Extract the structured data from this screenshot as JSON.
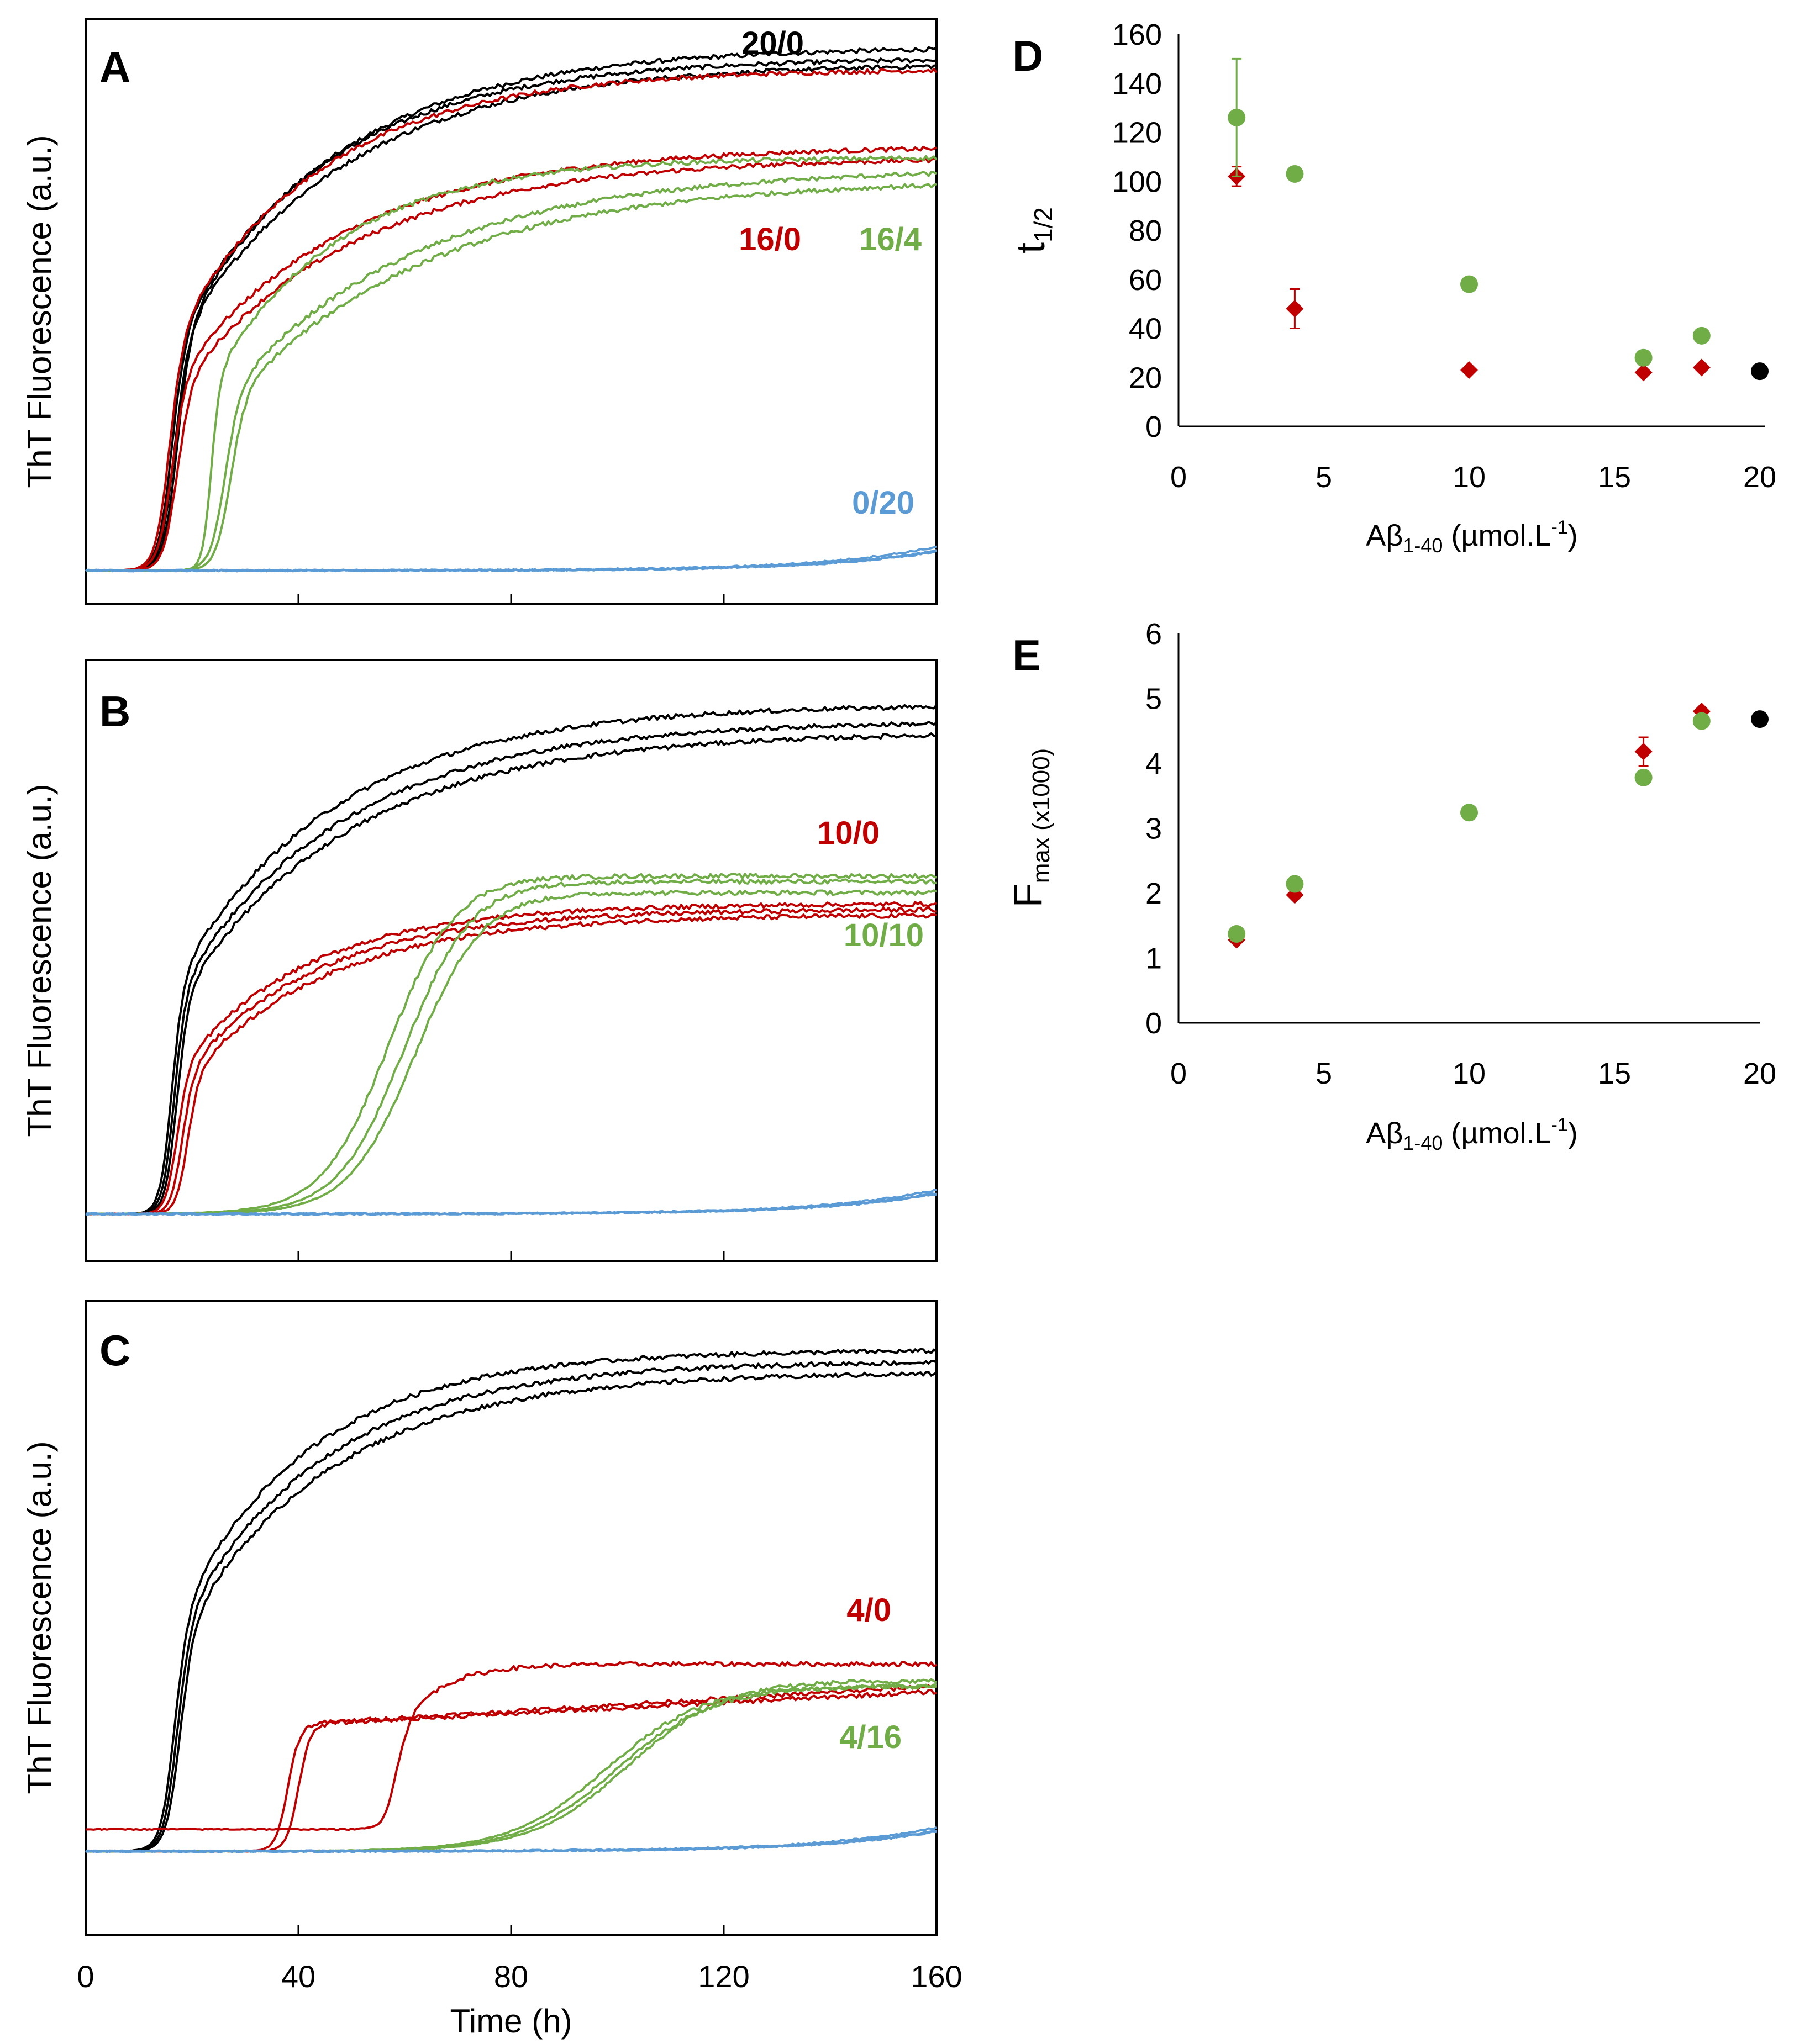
{
  "colors": {
    "black": "#000000",
    "red": "#c00000",
    "green": "#70ad47",
    "blue": "#5b9bd5"
  },
  "chart_data": [
    {
      "type": "line",
      "panel": "A",
      "ylabel": "ThT Fluorescence (a.u.)",
      "xlabel": "",
      "xlim": [
        0,
        160
      ],
      "x_ticks": [
        0,
        40,
        80,
        120,
        160
      ],
      "show_x_tick_labels": false,
      "ylim": [
        0,
        1
      ],
      "y_scale": "arbitrary units (normalized 0–1)",
      "series": [
        {
          "name": "20/0",
          "color": "black",
          "replicates": [
            {
              "t_lag": 17,
              "k": 0.75,
              "plateau": 0.95,
              "b": 0.0,
              "tau": 30
            },
            {
              "t_lag": 16,
              "k": 0.75,
              "plateau": 0.93,
              "b": 0.0,
              "tau": 29
            },
            {
              "t_lag": 16.5,
              "k": 0.75,
              "plateau": 0.92,
              "b": 0.0,
              "tau": 31
            }
          ]
        },
        {
          "name": "16/0",
          "color": "red",
          "replicates": [
            {
              "t_lag": 15.5,
              "k": 0.75,
              "plateau": 0.91,
              "b": 0.0,
              "tau": 28
            },
            {
              "t_lag": 16,
              "k": 0.75,
              "plateau": 0.77,
              "b": 0.0,
              "tau": 32
            },
            {
              "t_lag": 17,
              "k": 0.75,
              "plateau": 0.75,
              "b": 0.0,
              "tau": 33
            }
          ]
        },
        {
          "name": "16/4",
          "color": "green",
          "replicates": [
            {
              "t_lag": 23.5,
              "k": 1.2,
              "plateau": 0.75,
              "b": 0.0,
              "tau": 24
            },
            {
              "t_lag": 26,
              "k": 0.7,
              "plateau": 0.73,
              "b": 0.0,
              "tau": 36
            },
            {
              "t_lag": 27,
              "k": 0.7,
              "plateau": 0.71,
              "b": 0.0,
              "tau": 37
            }
          ]
        },
        {
          "name": "0/20",
          "color": "blue",
          "replicates": [
            {
              "t_lag": 200,
              "k": 0.05,
              "plateau": 0.36,
              "b": 0.0,
              "tau": 1
            },
            {
              "t_lag": 205,
              "k": 0.05,
              "plateau": 0.36,
              "b": 0.0,
              "tau": 1
            },
            {
              "t_lag": 204,
              "k": 0.05,
              "plateau": 0.36,
              "b": 0.0,
              "tau": 1
            }
          ]
        }
      ],
      "annotations": [
        {
          "text": "20/0",
          "color": "black"
        },
        {
          "text": "16/0",
          "color": "red"
        },
        {
          "text": "16/4",
          "color": "green"
        },
        {
          "text": "0/20",
          "color": "blue"
        }
      ]
    },
    {
      "type": "line",
      "panel": "B",
      "ylabel": "ThT Fluorescence (a.u.)",
      "xlabel": "",
      "xlim": [
        0,
        160
      ],
      "x_ticks": [
        0,
        40,
        80,
        120,
        160
      ],
      "show_x_tick_labels": false,
      "ylim": [
        0,
        1
      ],
      "y_scale": "arbitrary units (normalized 0–1)",
      "series": [
        {
          "name": "20/0",
          "color": "black",
          "replicates": [
            {
              "t_lag": 16,
              "k": 0.9,
              "plateau": 0.92,
              "b": 0.0,
              "tau": 30
            },
            {
              "t_lag": 16.5,
              "k": 0.9,
              "plateau": 0.89,
              "b": 0.0,
              "tau": 31
            },
            {
              "t_lag": 17,
              "k": 0.9,
              "plateau": 0.87,
              "b": 0.0,
              "tau": 32
            }
          ]
        },
        {
          "name": "10/0",
          "color": "red",
          "replicates": [
            {
              "t_lag": 17,
              "k": 0.9,
              "plateau": 0.56,
              "b": 0.0,
              "tau": 24
            },
            {
              "t_lag": 18,
              "k": 0.9,
              "plateau": 0.55,
              "b": 0.0,
              "tau": 25
            },
            {
              "t_lag": 19,
              "k": 0.9,
              "plateau": 0.54,
              "b": 0.0,
              "tau": 26
            }
          ]
        },
        {
          "name": "10/10",
          "color": "green",
          "replicates": [
            {
              "t_lag": 57,
              "k": 0.16,
              "plateau": 0.61,
              "b": 0.0,
              "tau": 1
            },
            {
              "t_lag": 60,
              "k": 0.16,
              "plateau": 0.6,
              "b": 0.0,
              "tau": 1
            },
            {
              "t_lag": 62,
              "k": 0.16,
              "plateau": 0.58,
              "b": 0.0,
              "tau": 1
            }
          ]
        },
        {
          "name": "0/20",
          "color": "blue",
          "replicates": [
            {
              "t_lag": 200,
              "k": 0.05,
              "plateau": 0.36,
              "b": 0.0,
              "tau": 1
            },
            {
              "t_lag": 204,
              "k": 0.05,
              "plateau": 0.36,
              "b": 0.0,
              "tau": 1
            },
            {
              "t_lag": 203,
              "k": 0.05,
              "plateau": 0.36,
              "b": 0.0,
              "tau": 1
            }
          ]
        }
      ],
      "annotations": [
        {
          "text": "10/0",
          "color": "red"
        },
        {
          "text": "10/10",
          "color": "green"
        }
      ]
    },
    {
      "type": "line",
      "panel": "C",
      "ylabel": "ThT Fluorescence (a.u.)",
      "xlabel": "Time (h)",
      "xlim": [
        0,
        160
      ],
      "x_ticks": [
        0,
        40,
        80,
        120,
        160
      ],
      "show_x_tick_labels": true,
      "ylim": [
        0,
        1
      ],
      "y_scale": "arbitrary units (normalized 0–1)",
      "series": [
        {
          "name": "20/0",
          "color": "black",
          "replicates": [
            {
              "t_lag": 16.5,
              "k": 0.75,
              "plateau": 0.91,
              "b": 0.0,
              "tau": 25
            },
            {
              "t_lag": 17,
              "k": 0.75,
              "plateau": 0.89,
              "b": 0.0,
              "tau": 27
            },
            {
              "t_lag": 17.5,
              "k": 0.75,
              "plateau": 0.87,
              "b": 0.0,
              "tau": 28
            }
          ]
        },
        {
          "name": "4/0",
          "color": "red",
          "replicates": [
            {
              "t_lag": 40,
              "k": 0.9,
              "plateau": 0.23,
              "b": 0.0,
              "tau": 60,
              "plateau2": 0.29
            },
            {
              "t_lag": 38,
              "k": 0.9,
              "plateau": 0.23,
              "b": 0.0,
              "tau": 60,
              "plateau2": 0.3
            },
            {
              "t_lag": 58,
              "k": 0.8,
              "plateau": 0.3,
              "b": 0.04,
              "tau": 8
            }
          ]
        },
        {
          "name": "4/16",
          "color": "green",
          "replicates": [
            {
              "t_lag": 98,
              "k": 0.11,
              "plateau": 0.3,
              "b": 0.0,
              "tau": 1
            },
            {
              "t_lag": 100,
              "k": 0.11,
              "plateau": 0.3,
              "b": 0.0,
              "tau": 1
            },
            {
              "t_lag": 102,
              "k": 0.11,
              "plateau": 0.31,
              "b": 0.0,
              "tau": 1
            }
          ]
        },
        {
          "name": "0/20",
          "color": "blue",
          "replicates": [
            {
              "t_lag": 200,
              "k": 0.05,
              "plateau": 0.36,
              "b": 0.0,
              "tau": 1
            },
            {
              "t_lag": 203,
              "k": 0.05,
              "plateau": 0.36,
              "b": 0.0,
              "tau": 1
            },
            {
              "t_lag": 204,
              "k": 0.05,
              "plateau": 0.36,
              "b": 0.0,
              "tau": 1
            }
          ]
        }
      ],
      "annotations": [
        {
          "text": "4/0",
          "color": "red"
        },
        {
          "text": "4/16",
          "color": "green"
        }
      ]
    },
    {
      "type": "scatter",
      "panel": "D",
      "ylabel": "t",
      "ylabel_sub": "1/2",
      "xlabel_main": "Aβ",
      "xlabel_sub": "1-40",
      "xlabel_unit": " (µmol.L",
      "xlabel_sup": "-1",
      "xlabel_close": ")",
      "xlim": [
        0,
        20
      ],
      "x_ticks": [
        0,
        5,
        10,
        15,
        20
      ],
      "ylim": [
        0,
        160
      ],
      "y_ticks": [
        0,
        20,
        40,
        60,
        80,
        100,
        120,
        140,
        160
      ],
      "series": [
        {
          "name": "red diamonds",
          "color": "red",
          "marker": "diamond",
          "points": [
            {
              "x": 2,
              "y": 102,
              "err": 4
            },
            {
              "x": 4,
              "y": 48,
              "err": 8
            },
            {
              "x": 10,
              "y": 23,
              "err": 0
            },
            {
              "x": 16,
              "y": 22,
              "err": 0
            },
            {
              "x": 18,
              "y": 24,
              "err": 0
            }
          ]
        },
        {
          "name": "green circles",
          "color": "green",
          "marker": "circle",
          "points": [
            {
              "x": 2,
              "y": 126,
              "err": 24
            },
            {
              "x": 4,
              "y": 103,
              "err": 0
            },
            {
              "x": 10,
              "y": 58,
              "err": 0
            },
            {
              "x": 16,
              "y": 28,
              "err": 3
            },
            {
              "x": 18,
              "y": 37,
              "err": 0
            }
          ]
        },
        {
          "name": "black circle",
          "color": "black",
          "marker": "circle",
          "points": [
            {
              "x": 20,
              "y": 22.5,
              "err": 0
            }
          ]
        }
      ]
    },
    {
      "type": "scatter",
      "panel": "E",
      "ylabel": "F",
      "ylabel_sub": "max",
      "ylabel_suffix": " (x1000)",
      "xlabel_main": "Aβ",
      "xlabel_sub": "1-40",
      "xlabel_unit": " (µmol.L",
      "xlabel_sup": "-1",
      "xlabel_close": ")",
      "xlim": [
        0,
        20
      ],
      "x_ticks": [
        0,
        5,
        10,
        15,
        20
      ],
      "ylim": [
        0,
        6
      ],
      "y_ticks": [
        0,
        1,
        2,
        3,
        4,
        5,
        6
      ],
      "series": [
        {
          "name": "red diamonds",
          "color": "red",
          "marker": "diamond",
          "points": [
            {
              "x": 2,
              "y": 1.28,
              "err": 0
            },
            {
              "x": 4,
              "y": 1.97,
              "err": 0
            },
            {
              "x": 16,
              "y": 4.18,
              "err": 0.22
            },
            {
              "x": 18,
              "y": 4.8,
              "err": 0
            }
          ]
        },
        {
          "name": "green circles",
          "color": "green",
          "marker": "circle",
          "points": [
            {
              "x": 2,
              "y": 1.37,
              "err": 0
            },
            {
              "x": 4,
              "y": 2.14,
              "err": 0
            },
            {
              "x": 10,
              "y": 3.24,
              "err": 0
            },
            {
              "x": 16,
              "y": 3.78,
              "err": 0
            },
            {
              "x": 18,
              "y": 4.65,
              "err": 0
            }
          ]
        },
        {
          "name": "black circle",
          "color": "black",
          "marker": "circle",
          "points": [
            {
              "x": 20,
              "y": 4.68,
              "err": 0
            }
          ]
        }
      ]
    }
  ]
}
